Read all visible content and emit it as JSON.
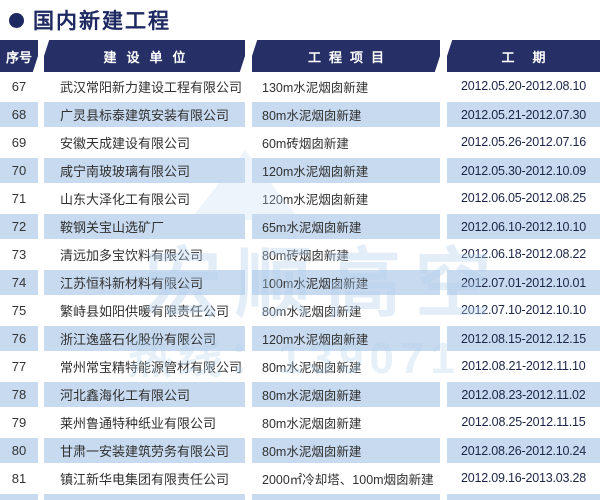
{
  "title": "国内新建工程",
  "colors": {
    "navy": "#262f66",
    "title_navy": "#1e2961",
    "stripe_blue": "#c8daef",
    "date_text": "#1c2547"
  },
  "header": {
    "col_no": "序号",
    "col_company": "建设单位",
    "col_project": "工程项目",
    "col_period": "工期"
  },
  "watermark": {
    "logo": "宏顺高空",
    "hotline": "热线：139071"
  },
  "table": {
    "rows": [
      {
        "no": "67",
        "company": "武汉常阳新力建设工程有限公司",
        "project": "130m水泥烟囱新建",
        "period": "2012.05.20-2012.08.10"
      },
      {
        "no": "68",
        "company": "广灵县标泰建筑安装有限公司",
        "project": "80m水泥烟囱新建",
        "period": "2012.05.21-2012.07.30"
      },
      {
        "no": "69",
        "company": "安徽天成建设有限公司",
        "project": "60m砖烟囱新建",
        "period": "2012.05.26-2012.07.16"
      },
      {
        "no": "70",
        "company": "咸宁南玻玻璃有限公司",
        "project": "120m水泥烟囱新建",
        "period": "2012.05.30-2012.10.09"
      },
      {
        "no": "71",
        "company": "山东大泽化工有限公司",
        "project": "120m水泥烟囱新建",
        "period": "2012.06.05-2012.08.25"
      },
      {
        "no": "72",
        "company": "鞍钢关宝山选矿厂",
        "project": "65m水泥烟囱新建",
        "period": "2012.06.10-2012.10.10"
      },
      {
        "no": "73",
        "company": "清远加多宝饮料有限公司",
        "project": "80m砖烟囱新建",
        "period": "2012.06.18-2012.08.22"
      },
      {
        "no": "74",
        "company": "江苏恒科新材料有限公司",
        "project": "100m水泥烟囱新建",
        "period": "2012.07.01-2012.10.01"
      },
      {
        "no": "75",
        "company": "繁峙县如阳供暖有限责任公司",
        "project": "80m水泥烟囱新建",
        "period": "2012.07.10-2012.10.10"
      },
      {
        "no": "76",
        "company": "浙江逸盛石化股份有限公司",
        "project": "120m水泥烟囱新建",
        "period": "2012.08.15-2012.12.15"
      },
      {
        "no": "77",
        "company": "常州常宝精特能源管材有限公司",
        "project": "80m水泥烟囱新建",
        "period": "2012.08.21-2012.11.10"
      },
      {
        "no": "78",
        "company": "河北鑫海化工有限公司",
        "project": "80m水泥烟囱新建",
        "period": "2012.08.23-2012.11.02"
      },
      {
        "no": "79",
        "company": "莱州鲁通特种纸业有限公司",
        "project": "80m水泥烟囱新建",
        "period": "2012.08.25-2012.11.15"
      },
      {
        "no": "80",
        "company": "甘肃一安装建筑劳务有限公司",
        "project": "80m水泥烟囱新建",
        "period": "2012.08.26-2012.10.24"
      },
      {
        "no": "81",
        "company": "镇江新华电集团有限责任公司",
        "project": "2000㎡冷却塔、100m烟囱新建",
        "period": "2012.09.16-2013.03.28"
      }
    ]
  }
}
